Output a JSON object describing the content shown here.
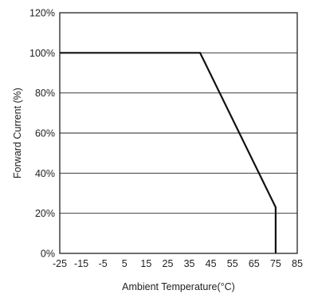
{
  "chart_data": {
    "type": "line",
    "xlabel": "Ambient Temperature(°C)",
    "ylabel": "Forward Current (%)",
    "x_ticks": [
      "-25",
      "-15",
      "-5",
      "5",
      "15",
      "25",
      "35",
      "45",
      "55",
      "65",
      "75",
      "85"
    ],
    "y_ticks": [
      "0%",
      "20%",
      "40%",
      "60%",
      "80%",
      "100%",
      "120%"
    ],
    "xlim": [
      -25,
      85
    ],
    "ylim": [
      0,
      120
    ],
    "grid": "horizontal",
    "series": [
      {
        "x": [
          -25,
          40,
          75,
          75
        ],
        "y": [
          100,
          100,
          23,
          0
        ]
      }
    ]
  }
}
